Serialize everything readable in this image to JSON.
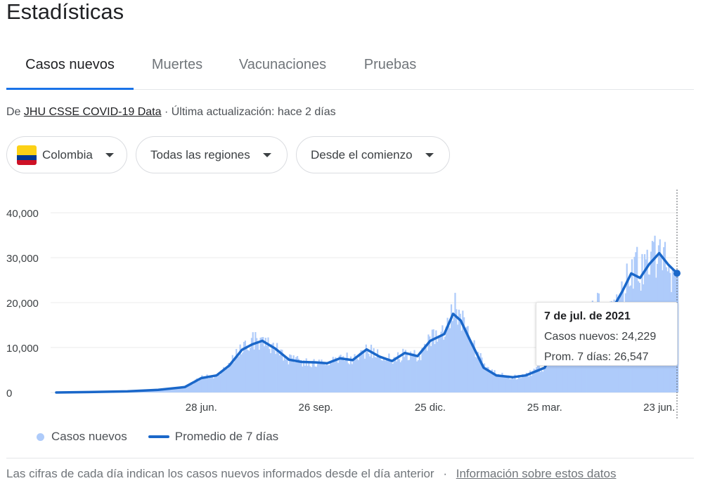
{
  "page": {
    "title": "Estadísticas"
  },
  "tabs": [
    {
      "label": "Casos nuevos",
      "active": true
    },
    {
      "label": "Muertes",
      "active": false
    },
    {
      "label": "Vacunaciones",
      "active": false
    },
    {
      "label": "Pruebas",
      "active": false
    }
  ],
  "source": {
    "prefix": "De",
    "link": "JHU CSSE COVID-19 Data",
    "suffix": "· Última actualización: hace 2 días"
  },
  "filters": {
    "country": "Colombia",
    "region": "Todas las regiones",
    "range": "Desde el comienzo"
  },
  "colors": {
    "accent": "#1a73e8",
    "line": "#1a67c9",
    "bars": "#aecbfa",
    "flag_yellow": "#fcd116",
    "flag_blue": "#003893",
    "flag_red": "#ce1126"
  },
  "chart_data": {
    "type": "area",
    "y_ticks": [
      0,
      10000,
      20000,
      30000,
      40000
    ],
    "y_tick_labels": [
      "0",
      "10,000",
      "20,000",
      "30,000",
      "40,000"
    ],
    "ylim": [
      0,
      42000
    ],
    "x_tick_labels": [
      "28 jun.",
      "26 sep.",
      "25 dic.",
      "25 mar.",
      "23 jun."
    ],
    "x_tick_dates": [
      "2020-06-28",
      "2020-09-26",
      "2020-12-25",
      "2021-03-25",
      "2021-06-23"
    ],
    "xlim": [
      "2020-03-06",
      "2021-07-07"
    ],
    "grid": true,
    "legend_position": "bottom-left",
    "series": [
      {
        "name": "Casos nuevos",
        "style": "bars",
        "x": [
          "2020-03-06",
          "2020-04-01",
          "2020-05-01",
          "2020-05-25",
          "2020-06-15",
          "2020-06-28",
          "2020-07-10",
          "2020-07-20",
          "2020-07-30",
          "2020-08-07",
          "2020-08-15",
          "2020-08-25",
          "2020-09-05",
          "2020-09-15",
          "2020-09-26",
          "2020-10-05",
          "2020-10-15",
          "2020-10-25",
          "2020-11-05",
          "2020-11-15",
          "2020-11-25",
          "2020-12-05",
          "2020-12-15",
          "2020-12-25",
          "2021-01-05",
          "2021-01-12",
          "2021-01-18",
          "2021-01-25",
          "2021-02-05",
          "2021-02-15",
          "2021-02-28",
          "2021-03-10",
          "2021-03-25",
          "2021-04-05",
          "2021-04-15",
          "2021-04-25",
          "2021-05-05",
          "2021-05-15",
          "2021-05-25",
          "2021-06-01",
          "2021-06-08",
          "2021-06-15",
          "2021-06-23",
          "2021-06-30",
          "2021-07-07"
        ],
        "values": [
          0,
          100,
          300,
          700,
          1300,
          3400,
          4000,
          6500,
          10500,
          12000,
          11300,
          10000,
          7500,
          7000,
          6500,
          6500,
          8200,
          7300,
          9700,
          8500,
          7200,
          9100,
          8200,
          12000,
          14000,
          20500,
          17000,
          12000,
          6000,
          4000,
          3500,
          4000,
          6000,
          13000,
          16000,
          17000,
          20000,
          18000,
          23000,
          29000,
          28000,
          31000,
          32500,
          29000,
          24229
        ]
      },
      {
        "name": "Promedio de 7 días",
        "style": "line",
        "x": [
          "2020-03-06",
          "2020-04-01",
          "2020-05-01",
          "2020-05-25",
          "2020-06-15",
          "2020-06-28",
          "2020-07-10",
          "2020-07-20",
          "2020-07-30",
          "2020-08-07",
          "2020-08-15",
          "2020-08-25",
          "2020-09-05",
          "2020-09-15",
          "2020-09-26",
          "2020-10-05",
          "2020-10-15",
          "2020-10-25",
          "2020-11-05",
          "2020-11-15",
          "2020-11-25",
          "2020-12-05",
          "2020-12-15",
          "2020-12-25",
          "2021-01-05",
          "2021-01-12",
          "2021-01-18",
          "2021-01-25",
          "2021-02-05",
          "2021-02-15",
          "2021-02-28",
          "2021-03-10",
          "2021-03-25",
          "2021-04-05",
          "2021-04-15",
          "2021-04-25",
          "2021-05-05",
          "2021-05-15",
          "2021-05-25",
          "2021-06-01",
          "2021-06-08",
          "2021-06-15",
          "2021-06-23",
          "2021-06-30",
          "2021-07-07"
        ],
        "values": [
          0,
          100,
          250,
          600,
          1200,
          3200,
          3800,
          6000,
          9500,
          10700,
          11500,
          9800,
          7300,
          6800,
          6700,
          6500,
          7600,
          7200,
          9600,
          8000,
          7000,
          8800,
          8100,
          11500,
          13000,
          17500,
          16000,
          11800,
          5500,
          3800,
          3400,
          3800,
          5500,
          12500,
          15500,
          16500,
          19500,
          17500,
          22500,
          26500,
          25500,
          28500,
          31000,
          28500,
          26547
        ]
      }
    ],
    "tooltip": {
      "date": "7 de jul. de 2021",
      "rows": [
        "Casos nuevos: 24,229",
        "Prom. 7 días: 26,547"
      ]
    }
  },
  "legend": {
    "bars_label": "Casos nuevos",
    "line_label": "Promedio de 7 días"
  },
  "footer": {
    "text": "Las cifras de cada día indican los casos nuevos informados desde el día anterior",
    "separator": "·",
    "link": "Información sobre estos datos"
  }
}
